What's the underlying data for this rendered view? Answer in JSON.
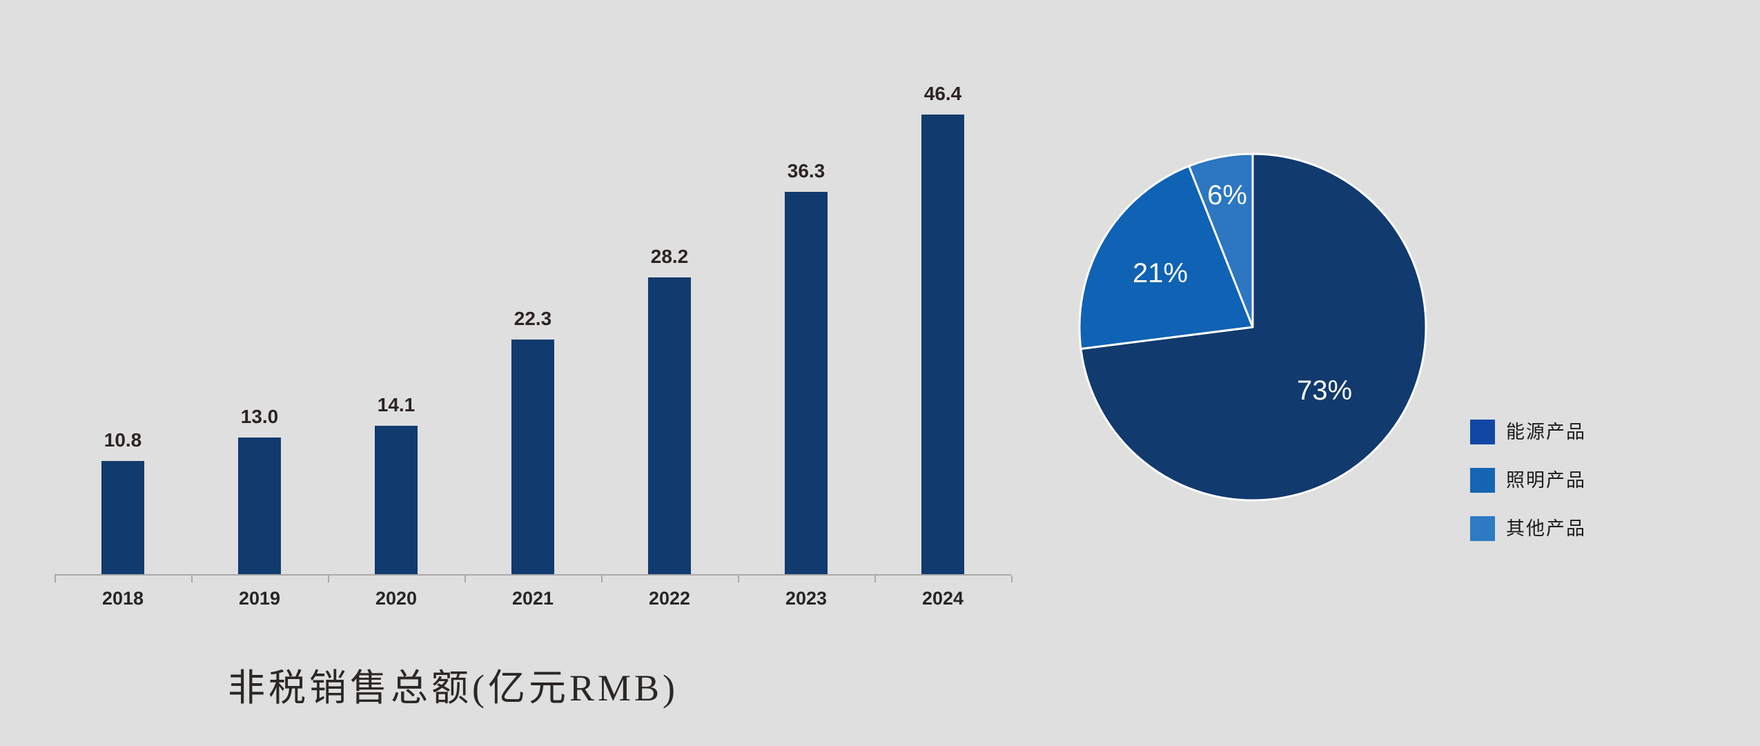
{
  "page": {
    "background_color": "#DEDFDE"
  },
  "bar_section": {
    "title": "非税销售总额(亿元RMB)"
  },
  "pie_section": {
    "legend": [
      {
        "label": "能源产品",
        "color": "#1247A5"
      },
      {
        "label": "照明产品",
        "color": "#1565B5"
      },
      {
        "label": "其他产品",
        "color": "#2E7BC4"
      }
    ]
  },
  "chart_data": [
    {
      "type": "bar",
      "title": "非税销售总额(亿元RMB)",
      "categories": [
        "2018",
        "2019",
        "2020",
        "2021",
        "2022",
        "2023",
        "2024"
      ],
      "values": [
        10.8,
        13.0,
        14.1,
        22.3,
        28.2,
        36.3,
        46.4
      ],
      "data_labels": [
        "10.8",
        "13.0",
        "14.1",
        "22.3",
        "28.2",
        "36.3",
        "46.4"
      ],
      "xlabel": "",
      "ylabel": "",
      "ylim": [
        0,
        43.6
      ],
      "grid": false,
      "legend_position": "none",
      "bar_color": "#113A6E",
      "value_label_color": "#2B2422",
      "category_label_color": "#262626",
      "axis_color": "#A9A9A9"
    },
    {
      "type": "pie",
      "labels": [
        "能源产品",
        "照明产品",
        "其他产品"
      ],
      "values": [
        73,
        21,
        6
      ],
      "data_labels": [
        "73%",
        "21%",
        "6%"
      ],
      "slice_colors": [
        "#113A6E",
        "#1062B4",
        "#2C76C2"
      ],
      "legend_colors": [
        "#1247A5",
        "#1565B5",
        "#2E7BC4"
      ],
      "start_angle_deg": 0,
      "direction": "clockwise",
      "legend_position": "right",
      "label_color": "#FFFFFF",
      "label_radius_factors": [
        0.55,
        0.62,
        0.78
      ]
    }
  ]
}
